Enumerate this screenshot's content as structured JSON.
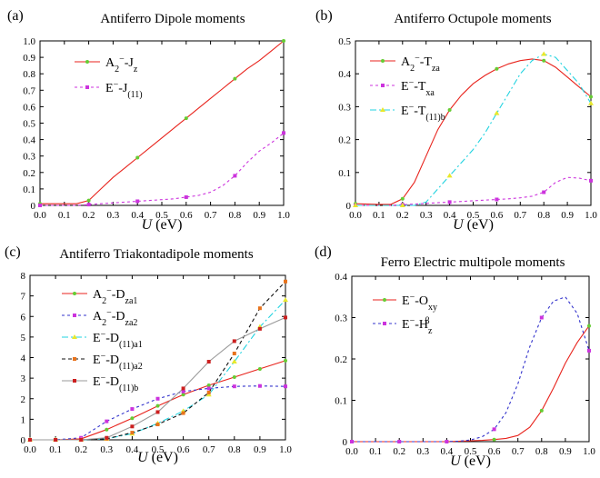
{
  "chart_data": [
    {
      "type": "line",
      "panel": "(a)",
      "title": "Antiferro Dipole moments",
      "xlabel": "U (eV)",
      "xlabel_italic": "U",
      "xlabel_unit": " (eV)",
      "xlim": [
        0,
        1.0
      ],
      "ylim": [
        0,
        1.0
      ],
      "xticks": [
        "0.0",
        "0.1",
        "0.2",
        "0.3",
        "0.4",
        "0.5",
        "0.6",
        "0.7",
        "0.8",
        "0.9",
        "1.0"
      ],
      "yticks": [
        "0",
        "0.1",
        "0.2",
        "0.3",
        "0.4",
        "0.5",
        "0.6",
        "0.7",
        "0.8",
        "0.9",
        "1.0"
      ],
      "legend_position": "top-left",
      "x": [
        0,
        0.05,
        0.1,
        0.15,
        0.2,
        0.25,
        0.3,
        0.35,
        0.4,
        0.45,
        0.5,
        0.55,
        0.6,
        0.65,
        0.7,
        0.75,
        0.8,
        0.85,
        0.9,
        0.95,
        1.0
      ],
      "series": [
        {
          "name_main": "A",
          "name_sub": "2",
          "name_sup": "−",
          "name_rest": "-J",
          "name_sub2": "z",
          "color": "#e8231c",
          "dash": "",
          "marker": "circle",
          "marker_color": "#66cc33",
          "values": [
            0.01,
            0.01,
            0.01,
            0.01,
            0.03,
            0.1,
            0.17,
            0.23,
            0.29,
            0.35,
            0.41,
            0.47,
            0.53,
            0.59,
            0.65,
            0.71,
            0.77,
            0.83,
            0.88,
            0.94,
            1.0
          ]
        },
        {
          "name_main": "E",
          "name_sub": "",
          "name_sup": "−",
          "name_rest": "-J",
          "name_sub2": "(11)",
          "color": "#cc33dd",
          "dash": "3,3",
          "marker": "square",
          "marker_color": "#cc33dd",
          "values": [
            0,
            0,
            0,
            0,
            0.005,
            0.01,
            0.015,
            0.02,
            0.025,
            0.03,
            0.035,
            0.04,
            0.05,
            0.06,
            0.08,
            0.12,
            0.18,
            0.26,
            0.33,
            0.38,
            0.44
          ]
        }
      ]
    },
    {
      "type": "line",
      "panel": "(b)",
      "title": "Antiferro Octupole moments",
      "xlabel": "U (eV)",
      "xlabel_italic": "U",
      "xlabel_unit": " (eV)",
      "xlim": [
        0,
        1.0
      ],
      "ylim": [
        0,
        0.5
      ],
      "xticks": [
        "0.0",
        "0.1",
        "0.2",
        "0.3",
        "0.4",
        "0.5",
        "0.6",
        "0.7",
        "0.8",
        "0.9",
        "1.0"
      ],
      "yticks": [
        "0",
        "0.1",
        "0.2",
        "0.3",
        "0.4",
        "0.5"
      ],
      "legend_position": "top-left",
      "x": [
        0,
        0.05,
        0.1,
        0.15,
        0.2,
        0.25,
        0.3,
        0.35,
        0.4,
        0.45,
        0.5,
        0.55,
        0.6,
        0.65,
        0.7,
        0.75,
        0.8,
        0.85,
        0.9,
        0.95,
        1.0
      ],
      "series": [
        {
          "name_main": "A",
          "name_sub": "2",
          "name_sup": "−",
          "name_rest": "-T",
          "name_sub2": "za",
          "color": "#e8231c",
          "dash": "",
          "marker": "circle",
          "marker_color": "#66cc33",
          "values": [
            0.005,
            0.004,
            0.003,
            0.003,
            0.02,
            0.07,
            0.15,
            0.23,
            0.29,
            0.335,
            0.37,
            0.395,
            0.415,
            0.43,
            0.44,
            0.445,
            0.44,
            0.42,
            0.39,
            0.36,
            0.33
          ]
        },
        {
          "name_main": "E",
          "name_sub": "",
          "name_sup": "−",
          "name_rest": "-T",
          "name_sub2": "xa",
          "color": "#cc33dd",
          "dash": "3,3",
          "marker": "square",
          "marker_color": "#cc33dd",
          "values": [
            0,
            0,
            0,
            0,
            0.002,
            0.004,
            0.006,
            0.008,
            0.01,
            0.012,
            0.014,
            0.016,
            0.018,
            0.02,
            0.023,
            0.028,
            0.04,
            0.07,
            0.085,
            0.083,
            0.075
          ]
        },
        {
          "name_main": "E",
          "name_sub": "",
          "name_sup": "−",
          "name_rest": "-T",
          "name_sub2": "(11)b",
          "color": "#22d3e0",
          "dash": "7,3,2,3",
          "marker": "triangle",
          "marker_color": "#e8e82c",
          "values": [
            0,
            0,
            0,
            0,
            0,
            0,
            0.01,
            0.05,
            0.09,
            0.13,
            0.17,
            0.22,
            0.28,
            0.34,
            0.4,
            0.44,
            0.46,
            0.45,
            0.41,
            0.37,
            0.31
          ]
        }
      ]
    },
    {
      "type": "line",
      "panel": "(c)",
      "title": "Antiferro Triakontadipole moments",
      "xlabel": "U (eV)",
      "xlabel_italic": "U",
      "xlabel_unit": " (eV)",
      "xlim": [
        0,
        1.0
      ],
      "ylim": [
        0,
        8
      ],
      "xticks": [
        "0.0",
        "0.1",
        "0.2",
        "0.3",
        "0.4",
        "0.5",
        "0.6",
        "0.7",
        "0.8",
        "0.9",
        "1.0"
      ],
      "yticks": [
        "0",
        "1",
        "2",
        "3",
        "4",
        "5",
        "6",
        "7",
        "8"
      ],
      "legend_position": "top-left",
      "x": [
        0,
        0.1,
        0.2,
        0.3,
        0.4,
        0.5,
        0.6,
        0.7,
        0.8,
        0.9,
        1.0
      ],
      "series": [
        {
          "name_main": "A",
          "name_sub": "2",
          "name_sup": "−",
          "name_rest": "-D",
          "name_sub2": "za1",
          "color": "#e8231c",
          "dash": "",
          "marker": "circle",
          "marker_color": "#66cc33",
          "values": [
            0,
            0,
            0.05,
            0.5,
            1.05,
            1.65,
            2.2,
            2.65,
            3.05,
            3.45,
            3.85
          ]
        },
        {
          "name_main": "A",
          "name_sub": "2",
          "name_sup": "−",
          "name_rest": "-D",
          "name_sub2": "za2",
          "color": "#3333cc",
          "dash": "3,3",
          "marker": "square",
          "marker_color": "#cc33dd",
          "values": [
            0,
            0,
            0.1,
            0.9,
            1.5,
            2.0,
            2.35,
            2.5,
            2.6,
            2.62,
            2.6
          ]
        },
        {
          "name_main": "E",
          "name_sub": "",
          "name_sup": "−",
          "name_rest": "-D",
          "name_sub2": "(11)a1",
          "color": "#22d3e0",
          "dash": "7,3,2,3",
          "marker": "triangle",
          "marker_color": "#e8e82c",
          "values": [
            0,
            0,
            0,
            0.05,
            0.3,
            0.8,
            1.4,
            2.2,
            3.8,
            5.5,
            6.8
          ]
        },
        {
          "name_main": "E",
          "name_sub": "",
          "name_sup": "−",
          "name_rest": "-D",
          "name_sub2": "(11)a2",
          "color": "#111111",
          "dash": "4,3",
          "marker": "square",
          "marker_color": "#e8731c",
          "values": [
            0,
            0,
            0,
            0.05,
            0.35,
            0.75,
            1.3,
            2.3,
            4.2,
            6.4,
            7.7
          ]
        },
        {
          "name_main": "E",
          "name_sub": "",
          "name_sup": "−",
          "name_rest": "-D",
          "name_sub2": "(11)b",
          "color": "#9a9a9a",
          "dash": "",
          "marker": "square",
          "marker_color": "#cc1f1f",
          "values": [
            0,
            0,
            0,
            0.1,
            0.65,
            1.35,
            2.5,
            3.8,
            4.8,
            5.4,
            5.95
          ]
        }
      ]
    },
    {
      "type": "line",
      "panel": "(d)",
      "title": "Ferro Electric multipole moments",
      "xlabel": "U (eV)",
      "xlabel_italic": "U",
      "xlabel_unit": " (eV)",
      "xlim": [
        0,
        1.0
      ],
      "ylim": [
        0,
        0.4
      ],
      "xticks": [
        "0.0",
        "0.1",
        "0.2",
        "0.3",
        "0.4",
        "0.5",
        "0.6",
        "0.7",
        "0.8",
        "0.9",
        "1.0"
      ],
      "yticks": [
        "0",
        "0.1",
        "0.2",
        "0.3",
        "0.4"
      ],
      "legend_position": "top-left",
      "x": [
        0,
        0.05,
        0.1,
        0.15,
        0.2,
        0.25,
        0.3,
        0.35,
        0.4,
        0.45,
        0.5,
        0.55,
        0.6,
        0.65,
        0.7,
        0.75,
        0.8,
        0.85,
        0.9,
        0.95,
        1.0
      ],
      "series": [
        {
          "name_main": "E",
          "name_sub": "",
          "name_sup": "−",
          "name_rest": "-O",
          "name_sub2": "xy",
          "color": "#e8231c",
          "dash": "",
          "marker": "circle",
          "marker_color": "#66cc33",
          "values": [
            0,
            0,
            0,
            0,
            0,
            0,
            0,
            0,
            0,
            0.001,
            0.002,
            0.003,
            0.005,
            0.008,
            0.015,
            0.035,
            0.075,
            0.13,
            0.19,
            0.24,
            0.28
          ]
        },
        {
          "name_main": "E",
          "name_sub": "",
          "name_sup": "−",
          "name_rest": "-H",
          "name_sub2": "z",
          "name_sup2": "β",
          "color": "#3333cc",
          "dash": "3,3",
          "marker": "square",
          "marker_color": "#cc33dd",
          "values": [
            0,
            0,
            0,
            0,
            0,
            0,
            0,
            0,
            0,
            0.001,
            0.004,
            0.012,
            0.03,
            0.07,
            0.14,
            0.23,
            0.3,
            0.34,
            0.35,
            0.31,
            0.22
          ]
        }
      ]
    }
  ]
}
